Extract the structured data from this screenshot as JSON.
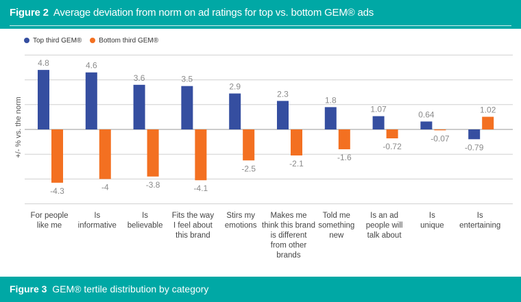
{
  "header": {
    "figure_label": "Figure 2",
    "title": "Average deviation from norm on ad ratings for top vs. bottom GEM® ads"
  },
  "footer": {
    "figure_label": "Figure 3",
    "title": "GEM® tertile distribution by category"
  },
  "chart_data": {
    "type": "bar",
    "title": "Average deviation from norm on ad ratings for top vs. bottom GEM® ads",
    "ylabel": "+/- % vs. the norm",
    "xlabel": "",
    "ylim": [
      -6,
      6
    ],
    "grid": true,
    "legend_position": "top-left",
    "categories": [
      [
        "For people",
        "like me"
      ],
      [
        "Is",
        "informative"
      ],
      [
        "Is",
        "believable"
      ],
      [
        "Fits the way",
        "I feel about",
        "this brand"
      ],
      [
        "Stirs my",
        "emotions"
      ],
      [
        "Makes me",
        "think this brand",
        "is different",
        "from other",
        "brands"
      ],
      [
        "Told me",
        "something",
        "new"
      ],
      [
        "Is an ad",
        "people will",
        "talk about"
      ],
      [
        "Is",
        "unique"
      ],
      [
        "Is",
        "entertaining"
      ]
    ],
    "series": [
      {
        "name": "Top third GEM®",
        "color": "#354ea0",
        "values": [
          4.8,
          4.6,
          3.6,
          3.5,
          2.9,
          2.3,
          1.8,
          1.07,
          0.64,
          -0.79
        ],
        "labels": [
          "4.8",
          "4.6",
          "3.6",
          "3.5",
          "2.9",
          "2.3",
          "1.8",
          "1.07",
          "0.64",
          "-0.79"
        ]
      },
      {
        "name": "Bottom third GEM®",
        "color": "#f37021",
        "values": [
          -4.3,
          -4,
          -3.8,
          -4.1,
          -2.5,
          -2.1,
          -1.6,
          -0.72,
          -0.07,
          1.02
        ],
        "labels": [
          "-4.3",
          "-4",
          "-3.8",
          "-4.1",
          "-2.5",
          "-2.1",
          "-1.6",
          "-0.72",
          "-0.07",
          "1.02"
        ]
      }
    ]
  }
}
